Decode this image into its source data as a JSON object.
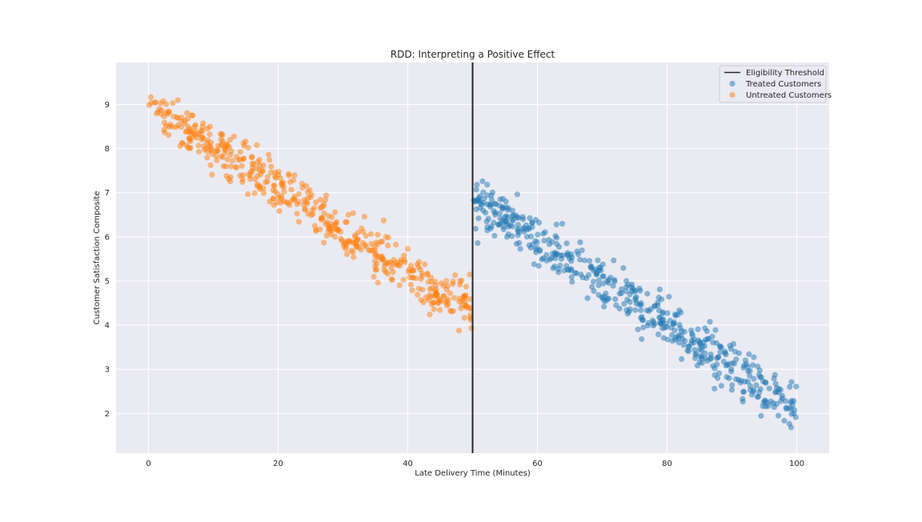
{
  "chart_data": {
    "type": "scatter",
    "title": "RDD: Interpreting a Positive Effect",
    "xlabel": "Late Delivery Time (Minutes)",
    "ylabel": "Customer Satisfaction Composite",
    "xlim": [
      -5,
      105
    ],
    "ylim": [
      1.1,
      9.95
    ],
    "xticks": [
      0,
      20,
      40,
      60,
      80,
      100
    ],
    "yticks": [
      2,
      3,
      4,
      5,
      6,
      7,
      8,
      9
    ],
    "grid": true,
    "legend_position": "top-right",
    "threshold": {
      "name": "Eligibility Threshold",
      "x": 50,
      "color": "#262626"
    },
    "series": [
      {
        "name": "Treated Customers",
        "color": "#1f77b4",
        "x_range": [
          50,
          100
        ],
        "trend_at_cutoff": 6.85,
        "slope_per_minute": -0.095,
        "noise_sd": 0.28,
        "n": 500
      },
      {
        "name": "Untreated Customers",
        "color": "#ff7f0e",
        "x_range": [
          0,
          50
        ],
        "trend_at_zero": 9.0,
        "slope_per_minute": -0.095,
        "noise_sd": 0.28,
        "n": 500
      }
    ]
  }
}
